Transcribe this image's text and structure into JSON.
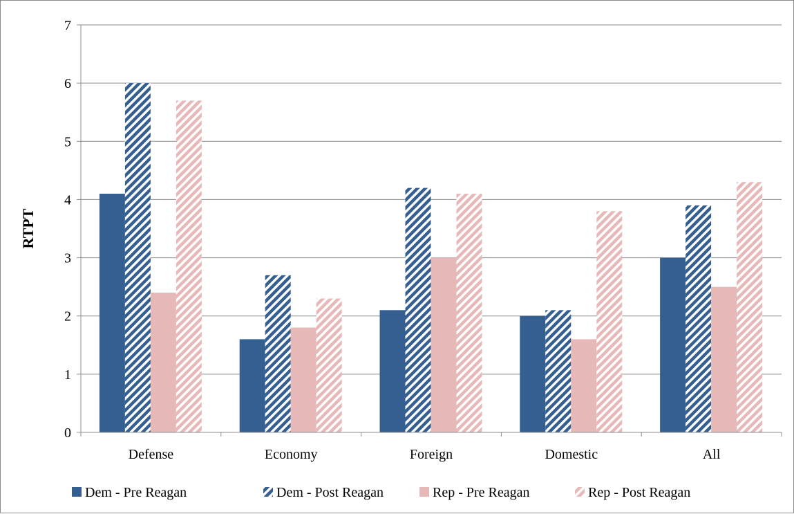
{
  "chart_data": {
    "type": "bar",
    "title": "",
    "xlabel": "",
    "ylabel": "RTPT",
    "ylim": [
      0,
      7
    ],
    "yticks": [
      0,
      1,
      2,
      3,
      4,
      5,
      6,
      7
    ],
    "grid": true,
    "legend_position": "bottom",
    "categories": [
      "Defense",
      "Economy",
      "Foreign",
      "Domestic",
      "All"
    ],
    "series": [
      {
        "name": "Dem - Pre Reagan",
        "values": [
          4.1,
          1.6,
          2.1,
          2.0,
          3.0
        ],
        "color": "#355f91",
        "pattern": "solid"
      },
      {
        "name": "Dem - Post Reagan",
        "values": [
          6.0,
          2.7,
          4.2,
          2.1,
          3.9
        ],
        "color": "#355f91",
        "pattern": "hatch"
      },
      {
        "name": "Rep - Pre Reagan",
        "values": [
          2.4,
          1.8,
          3.0,
          1.6,
          2.5
        ],
        "color": "#e6b9b8",
        "pattern": "solid"
      },
      {
        "name": "Rep - Post Reagan",
        "values": [
          5.7,
          2.3,
          4.1,
          3.8,
          4.3
        ],
        "color": "#e6b9b8",
        "pattern": "hatch"
      }
    ]
  }
}
